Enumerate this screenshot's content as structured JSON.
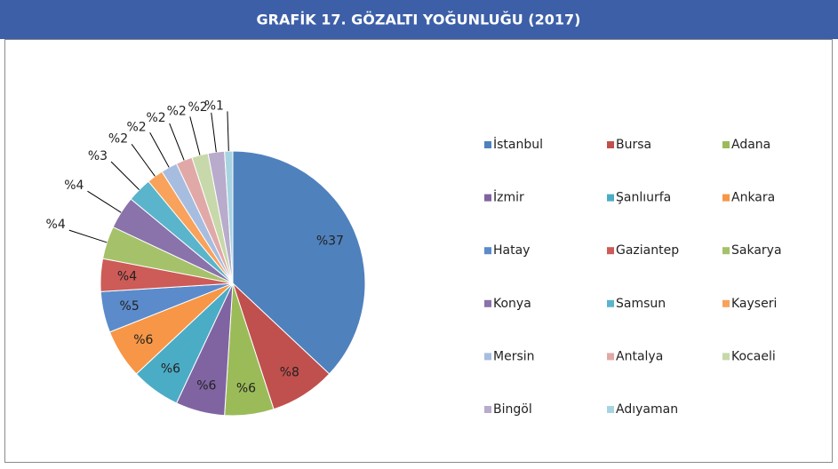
{
  "chart_data": {
    "type": "pie",
    "title": "GRAFİK 17. GÖZALTI YOĞUNLUĞU (2017)",
    "categories": [
      "İstanbul",
      "Bursa",
      "Adana",
      "İzmir",
      "Şanlıurfa",
      "Ankara",
      "Hatay",
      "Gaziantep",
      "Sakarya",
      "Konya",
      "Samsun",
      "Kayseri",
      "Mersin",
      "Antalya",
      "Kocaeli",
      "Bingöl",
      "Adıyaman"
    ],
    "values": [
      37,
      8,
      6,
      6,
      6,
      6,
      5,
      4,
      4,
      4,
      3,
      2,
      2,
      2,
      2,
      2,
      1
    ],
    "value_labels": [
      "%37",
      "%8",
      "%6",
      "%6",
      "%6",
      "%6",
      "%5",
      "%4",
      "%4",
      "%4",
      "%3",
      "%2",
      "%2",
      "%2",
      "%2",
      "%2",
      "%1"
    ],
    "colors": [
      "#4F81BD",
      "#C0504D",
      "#9BBB59",
      "#8064A2",
      "#4BACC6",
      "#F79646",
      "#5B8BCB",
      "#CD5B57",
      "#A5C26B",
      "#8A72AA",
      "#5AB4CC",
      "#F8A25C",
      "#A7BDE0",
      "#E0A9A8",
      "#C7D8AA",
      "#B9ABCB",
      "#A8D4E1"
    ],
    "legend": "right"
  }
}
